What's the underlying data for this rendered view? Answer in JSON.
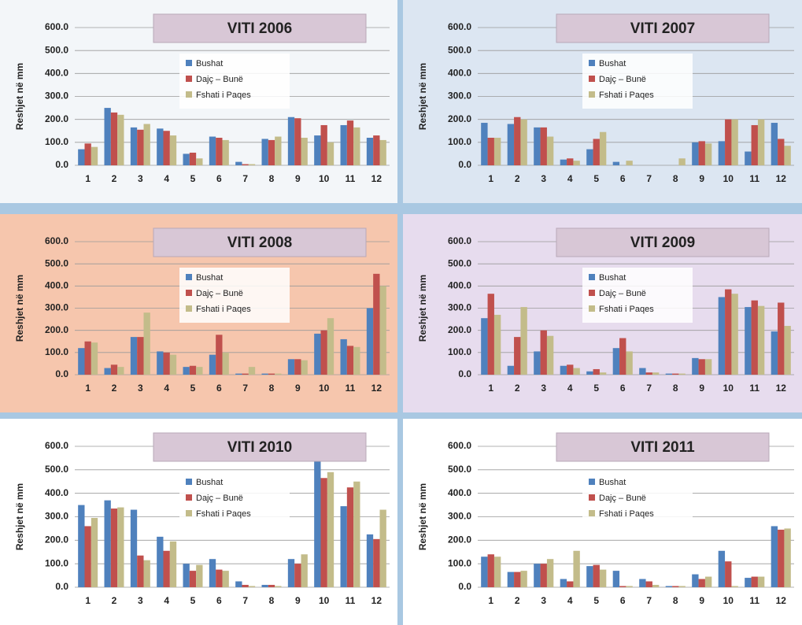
{
  "chart_data": [
    {
      "type": "bar",
      "title": "VITI 2006",
      "ylabel": "Reshjet në mm",
      "categories": [
        "1",
        "2",
        "3",
        "4",
        "5",
        "6",
        "7",
        "8",
        "9",
        "10",
        "11",
        "12"
      ],
      "ylim": [
        0,
        600
      ],
      "yticks": [
        {
          "value": 0,
          "label": "0.0"
        },
        {
          "value": 100,
          "label": "100.0"
        },
        {
          "value": 200,
          "label": "200.0"
        },
        {
          "value": 300,
          "label": "300.0"
        },
        {
          "value": 400,
          "label": "400.0"
        },
        {
          "value": 500,
          "label": "500.0"
        },
        {
          "value": 600,
          "label": "600.0"
        }
      ],
      "grid": true,
      "background": "#f3f6f9",
      "series": [
        {
          "name": "Bushat",
          "color": "#4f81bd",
          "values": [
            70,
            250,
            165,
            160,
            50,
            125,
            15,
            115,
            210,
            130,
            175,
            120
          ]
        },
        {
          "name": "Dajç – Bunë",
          "color": "#c0504d",
          "values": [
            95,
            230,
            155,
            150,
            55,
            120,
            5,
            110,
            205,
            175,
            195,
            130
          ]
        },
        {
          "name": "Fshati i Paqes",
          "color": "#c3bc8a",
          "values": [
            80,
            220,
            180,
            130,
            30,
            110,
            5,
            125,
            120,
            100,
            165,
            110
          ]
        }
      ]
    },
    {
      "type": "bar",
      "title": "VITI 2007",
      "ylabel": "Reshjet në mm",
      "categories": [
        "1",
        "2",
        "3",
        "4",
        "5",
        "6",
        "7",
        "8",
        "9",
        "10",
        "11",
        "12"
      ],
      "ylim": [
        0,
        600
      ],
      "yticks": [
        {
          "value": 0,
          "label": "0.0"
        },
        {
          "value": 100,
          "label": "100.0"
        },
        {
          "value": 200,
          "label": "200.0"
        },
        {
          "value": 300,
          "label": "300.0"
        },
        {
          "value": 400,
          "label": "400.0"
        },
        {
          "value": 500,
          "label": "500.0"
        },
        {
          "value": 600,
          "label": "600.0"
        }
      ],
      "grid": true,
      "background": "#dce6f2",
      "series": [
        {
          "name": "Bushat",
          "color": "#4f81bd",
          "values": [
            185,
            180,
            165,
            25,
            70,
            15,
            0,
            0,
            100,
            105,
            60,
            185
          ]
        },
        {
          "name": "Dajç – Bunë",
          "color": "#c0504d",
          "values": [
            120,
            210,
            165,
            30,
            115,
            0,
            0,
            0,
            105,
            200,
            175,
            115
          ]
        },
        {
          "name": "Fshati i Paqes",
          "color": "#c3bc8a",
          "values": [
            120,
            200,
            125,
            20,
            145,
            20,
            0,
            30,
            95,
            200,
            200,
            85
          ]
        }
      ]
    },
    {
      "type": "bar",
      "title": "VITI 2008",
      "ylabel": "Reshjet në mm",
      "categories": [
        "1",
        "2",
        "3",
        "4",
        "5",
        "6",
        "7",
        "8",
        "9",
        "10",
        "11",
        "12"
      ],
      "ylim": [
        0,
        600
      ],
      "yticks": [
        {
          "value": 0,
          "label": "0.0"
        },
        {
          "value": 100,
          "label": "100.0"
        },
        {
          "value": 200,
          "label": "200.0"
        },
        {
          "value": 300,
          "label": "300.0"
        },
        {
          "value": 400,
          "label": "400.0"
        },
        {
          "value": 500,
          "label": "500.0"
        },
        {
          "value": 600,
          "label": "600.0"
        }
      ],
      "grid": true,
      "background": "#f6c6ad",
      "series": [
        {
          "name": "Bushat",
          "color": "#4f81bd",
          "values": [
            120,
            30,
            170,
            105,
            35,
            90,
            5,
            5,
            70,
            185,
            160,
            300
          ]
        },
        {
          "name": "Dajç – Bunë",
          "color": "#c0504d",
          "values": [
            150,
            45,
            170,
            100,
            40,
            180,
            5,
            5,
            70,
            200,
            130,
            455
          ]
        },
        {
          "name": "Fshati i Paqes",
          "color": "#c3bc8a",
          "values": [
            145,
            35,
            280,
            90,
            35,
            100,
            35,
            5,
            65,
            255,
            125,
            400
          ]
        }
      ]
    },
    {
      "type": "bar",
      "title": "VITI 2009",
      "ylabel": "Reshjet në mm",
      "categories": [
        "1",
        "2",
        "3",
        "4",
        "5",
        "6",
        "7",
        "8",
        "9",
        "10",
        "11",
        "12"
      ],
      "ylim": [
        0,
        600
      ],
      "yticks": [
        {
          "value": 0,
          "label": "0.0"
        },
        {
          "value": 100,
          "label": "100.0"
        },
        {
          "value": 200,
          "label": "200.0"
        },
        {
          "value": 300,
          "label": "300.0"
        },
        {
          "value": 400,
          "label": "400.0"
        },
        {
          "value": 500,
          "label": "500.0"
        },
        {
          "value": 600,
          "label": "600.0"
        }
      ],
      "grid": true,
      "background": "#e7dcee",
      "series": [
        {
          "name": "Bushat",
          "color": "#4f81bd",
          "values": [
            255,
            40,
            105,
            40,
            15,
            120,
            30,
            5,
            75,
            350,
            305,
            195
          ]
        },
        {
          "name": "Dajç – Bunë",
          "color": "#c0504d",
          "values": [
            365,
            170,
            200,
            45,
            25,
            165,
            10,
            5,
            70,
            385,
            335,
            325
          ]
        },
        {
          "name": "Fshati i Paqes",
          "color": "#c3bc8a",
          "values": [
            270,
            305,
            175,
            30,
            10,
            105,
            10,
            5,
            70,
            365,
            310,
            220
          ]
        }
      ]
    },
    {
      "type": "bar",
      "title": "VITI 2010",
      "ylabel": "Reshjet në mm",
      "categories": [
        "1",
        "2",
        "3",
        "4",
        "5",
        "6",
        "7",
        "8",
        "9",
        "10",
        "11",
        "12"
      ],
      "ylim": [
        0,
        600
      ],
      "yticks": [
        {
          "value": 0,
          "label": "0.0"
        },
        {
          "value": 100,
          "label": "100.0"
        },
        {
          "value": 200,
          "label": "200.0"
        },
        {
          "value": 300,
          "label": "300.0"
        },
        {
          "value": 400,
          "label": "400.0"
        },
        {
          "value": 500,
          "label": "500.0"
        },
        {
          "value": 600,
          "label": "600.0"
        }
      ],
      "grid": true,
      "background": "#ffffff",
      "series": [
        {
          "name": "Bushat",
          "color": "#4f81bd",
          "values": [
            350,
            370,
            330,
            215,
            100,
            120,
            25,
            10,
            120,
            630,
            345,
            225
          ]
        },
        {
          "name": "Dajç – Bunë",
          "color": "#c0504d",
          "values": [
            260,
            335,
            135,
            155,
            70,
            75,
            10,
            10,
            100,
            465,
            425,
            205
          ]
        },
        {
          "name": "Fshati i Paqes",
          "color": "#c3bc8a",
          "values": [
            295,
            340,
            115,
            195,
            95,
            70,
            5,
            5,
            140,
            490,
            450,
            330
          ]
        }
      ]
    },
    {
      "type": "bar",
      "title": "VITI 2011",
      "ylabel": "Reshjet në mm",
      "categories": [
        "1",
        "2",
        "3",
        "4",
        "5",
        "6",
        "7",
        "8",
        "9",
        "10",
        "11",
        "12"
      ],
      "ylim": [
        0,
        600
      ],
      "yticks": [
        {
          "value": 0,
          "label": "0.0"
        },
        {
          "value": 100,
          "label": "100.0"
        },
        {
          "value": 200,
          "label": "200.0"
        },
        {
          "value": 300,
          "label": "300.0"
        },
        {
          "value": 400,
          "label": "400.0"
        },
        {
          "value": 500,
          "label": "500.0"
        },
        {
          "value": 600,
          "label": "600.0"
        }
      ],
      "grid": true,
      "background": "#ffffff",
      "series": [
        {
          "name": "Bushat",
          "color": "#4f81bd",
          "values": [
            130,
            65,
            100,
            35,
            90,
            70,
            35,
            5,
            55,
            155,
            40,
            260
          ]
        },
        {
          "name": "Dajç – Bunë",
          "color": "#c0504d",
          "values": [
            140,
            65,
            100,
            25,
            95,
            5,
            25,
            5,
            35,
            110,
            45,
            245
          ]
        },
        {
          "name": "Fshati i Paqes",
          "color": "#c3bc8a",
          "values": [
            130,
            70,
            120,
            155,
            75,
            5,
            10,
            5,
            45,
            5,
            45,
            250
          ]
        }
      ]
    }
  ]
}
